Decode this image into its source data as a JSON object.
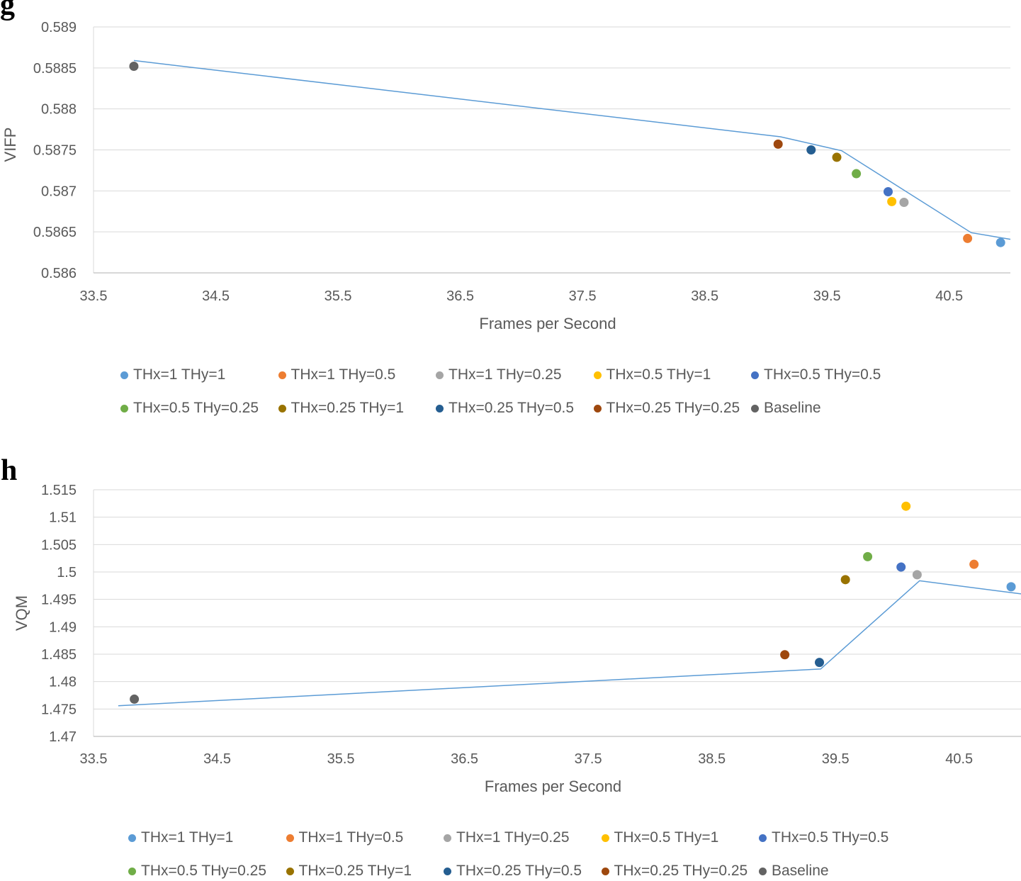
{
  "chart_data": [
    {
      "panel_label": "g",
      "type": "scatter",
      "xlabel": "Frames per Second",
      "ylabel": "VIFP",
      "xlim": [
        33.5,
        41.0
      ],
      "ylim": [
        0.586,
        0.589
      ],
      "x_ticks": [
        "33.5",
        "34.5",
        "35.5",
        "36.5",
        "37.5",
        "38.5",
        "39.5",
        "40.5"
      ],
      "y_ticks": [
        "0.586",
        "0.5865",
        "0.587",
        "0.5875",
        "0.588",
        "0.5885",
        "0.589"
      ],
      "grid": true,
      "legend_position": "bottom",
      "series": [
        {
          "name": "THx=1 THy=1",
          "color": "#5B9BD5",
          "x": 40.92,
          "y": 0.58637
        },
        {
          "name": "THx=1 THy=0.5",
          "color": "#ED7D31",
          "x": 40.65,
          "y": 0.58642
        },
        {
          "name": "THx=1 THy=0.25",
          "color": "#A5A5A5",
          "x": 40.13,
          "y": 0.58686
        },
        {
          "name": "THx=0.5 THy=1",
          "color": "#FFC000",
          "x": 40.03,
          "y": 0.58687
        },
        {
          "name": "THx=0.5 THy=0.5",
          "color": "#4472C4",
          "x": 40.0,
          "y": 0.58699
        },
        {
          "name": "THx=0.5 THy=0.25",
          "color": "#70AD47",
          "x": 39.74,
          "y": 0.58721
        },
        {
          "name": "THx=0.25 THy=1",
          "color": "#997300",
          "x": 39.58,
          "y": 0.58741
        },
        {
          "name": "THx=0.25 THy=0.5",
          "color": "#255E91",
          "x": 39.37,
          "y": 0.5875
        },
        {
          "name": "THx=0.25 THy=0.25",
          "color": "#9E480E",
          "x": 39.1,
          "y": 0.58757
        },
        {
          "name": "Baseline",
          "color": "#636363",
          "x": 33.83,
          "y": 0.58852
        }
      ],
      "trendline": {
        "color": "#5B9BD5",
        "x": [
          33.83,
          39.12,
          39.62,
          40.68,
          41.0
        ],
        "y": [
          0.58859,
          0.58766,
          0.58749,
          0.58649,
          0.58641
        ]
      }
    },
    {
      "panel_label": "h",
      "type": "scatter",
      "xlabel": "Frames per Second",
      "ylabel": "VQM",
      "xlim": [
        33.5,
        41.0
      ],
      "ylim": [
        1.47,
        1.515
      ],
      "x_ticks": [
        "33.5",
        "34.5",
        "35.5",
        "36.5",
        "37.5",
        "38.5",
        "39.5",
        "40.5"
      ],
      "y_ticks": [
        "1.47",
        "1.475",
        "1.48",
        "1.485",
        "1.49",
        "1.495",
        "1.5",
        "1.505",
        "1.51",
        "1.515"
      ],
      "grid": true,
      "legend_position": "bottom",
      "series": [
        {
          "name": "THx=1 THy=1",
          "color": "#5B9BD5",
          "x": 40.92,
          "y": 1.4973
        },
        {
          "name": "THx=1 THy=0.5",
          "color": "#ED7D31",
          "x": 40.62,
          "y": 1.5014
        },
        {
          "name": "THx=1 THy=0.25",
          "color": "#A5A5A5",
          "x": 40.16,
          "y": 1.4995
        },
        {
          "name": "THx=0.5 THy=1",
          "color": "#FFC000",
          "x": 40.07,
          "y": 1.512
        },
        {
          "name": "THx=0.5 THy=0.5",
          "color": "#4472C4",
          "x": 40.03,
          "y": 1.5009
        },
        {
          "name": "THx=0.5 THy=0.25",
          "color": "#70AD47",
          "x": 39.76,
          "y": 1.5028
        },
        {
          "name": "THx=0.25 THy=1",
          "color": "#997300",
          "x": 39.58,
          "y": 1.4986
        },
        {
          "name": "THx=0.25 THy=0.5",
          "color": "#255E91",
          "x": 39.37,
          "y": 1.4835
        },
        {
          "name": "THx=0.25 THy=0.25",
          "color": "#9E480E",
          "x": 39.09,
          "y": 1.4849
        },
        {
          "name": "Baseline",
          "color": "#636363",
          "x": 33.83,
          "y": 1.4768
        }
      ],
      "trendline": {
        "color": "#5B9BD5",
        "x": [
          33.7,
          39.38,
          40.18,
          41.0
        ],
        "y": [
          1.4756,
          1.4823,
          1.4984,
          1.496
        ]
      }
    }
  ]
}
